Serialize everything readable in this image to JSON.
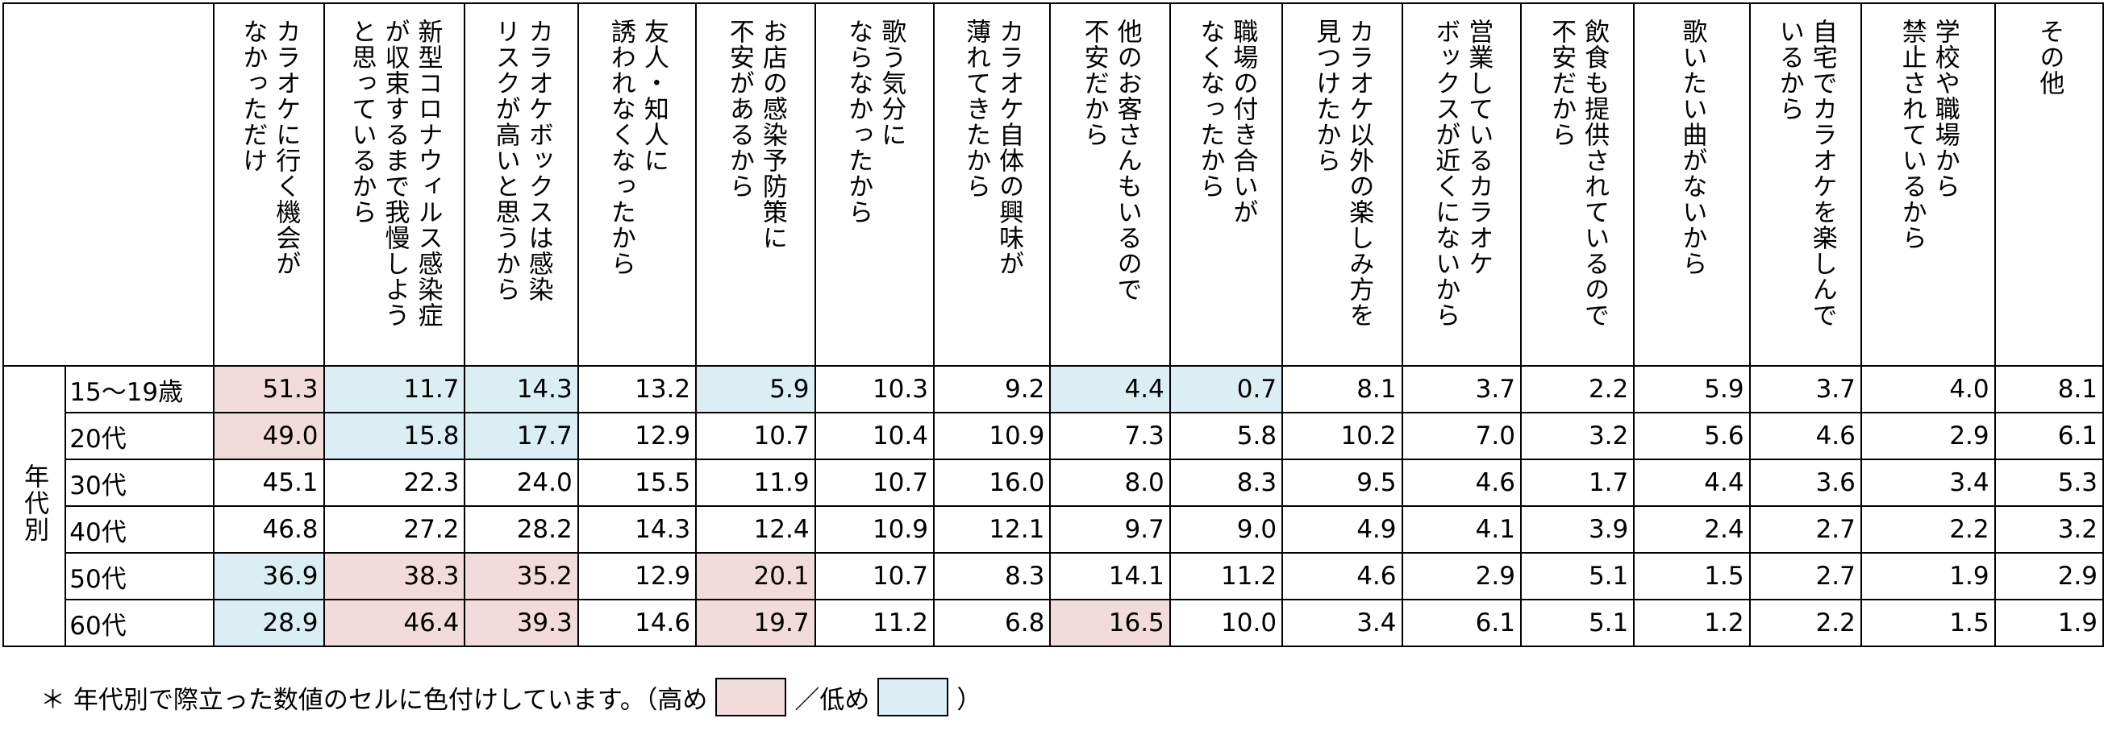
{
  "chart_data": {
    "type": "table",
    "columns": [
      "カラオケに行く機会が\nなかっただけ",
      "新型コロナウィルス感染症\nが収束するまで我慢しよう\nと思っているから",
      "カラオケボックスは感染\nリスクが高いと思うから",
      "友人・知人に\n誘われなくなったから",
      "お店の感染予防策に\n不安があるから",
      "歌う気分に\nならなかったから",
      "カラオケ自体の興味が\n薄れてきたから",
      "他のお客さんもいるので\n不安だから",
      "職場の付き合いが\nなくなったから",
      "カラオケ以外の楽しみ方を\n見つけたから",
      "営業しているカラオケ\nボックスが近くにないから",
      "飲食も提供されているので\n不安だから",
      "歌いたい曲がないから",
      "自宅でカラオケを楽しんで\nいるから",
      "学校や職場から\n禁止されているから",
      "その他"
    ],
    "row_group_label": "年代別",
    "rows": [
      {
        "label": "15～19歳",
        "values": [
          "51.3",
          "11.7",
          "14.3",
          "13.2",
          "5.9",
          "10.3",
          "9.2",
          "4.4",
          "0.7",
          "8.1",
          "3.7",
          "2.2",
          "5.9",
          "3.7",
          "4.0",
          "8.1"
        ],
        "highlight": {
          "0": "hi",
          "1": "lo",
          "2": "lo",
          "4": "lo",
          "7": "lo",
          "8": "lo"
        }
      },
      {
        "label": "20代",
        "values": [
          "49.0",
          "15.8",
          "17.7",
          "12.9",
          "10.7",
          "10.4",
          "10.9",
          "7.3",
          "5.8",
          "10.2",
          "7.0",
          "3.2",
          "5.6",
          "4.6",
          "2.9",
          "6.1"
        ],
        "highlight": {
          "0": "hi",
          "1": "lo",
          "2": "lo"
        }
      },
      {
        "label": "30代",
        "values": [
          "45.1",
          "22.3",
          "24.0",
          "15.5",
          "11.9",
          "10.7",
          "16.0",
          "8.0",
          "8.3",
          "9.5",
          "4.6",
          "1.7",
          "4.4",
          "3.6",
          "3.4",
          "5.3"
        ],
        "highlight": {}
      },
      {
        "label": "40代",
        "values": [
          "46.8",
          "27.2",
          "28.2",
          "14.3",
          "12.4",
          "10.9",
          "12.1",
          "9.7",
          "9.0",
          "4.9",
          "4.1",
          "3.9",
          "2.4",
          "2.7",
          "2.2",
          "3.2"
        ],
        "highlight": {}
      },
      {
        "label": "50代",
        "values": [
          "36.9",
          "38.3",
          "35.2",
          "12.9",
          "20.1",
          "10.7",
          "8.3",
          "14.1",
          "11.2",
          "4.6",
          "2.9",
          "5.1",
          "1.5",
          "2.7",
          "1.9",
          "2.9"
        ],
        "highlight": {
          "0": "lo",
          "1": "hi",
          "2": "hi",
          "4": "hi"
        }
      },
      {
        "label": "60代",
        "values": [
          "28.9",
          "46.4",
          "39.3",
          "14.6",
          "19.7",
          "11.2",
          "6.8",
          "16.5",
          "10.0",
          "3.4",
          "6.1",
          "5.1",
          "1.2",
          "2.2",
          "1.5",
          "1.9"
        ],
        "highlight": {
          "0": "lo",
          "1": "hi",
          "2": "hi",
          "4": "hi",
          "7": "hi"
        }
      }
    ],
    "colors": {
      "hi": "#f2dcdb",
      "lo": "#dbeef4"
    }
  },
  "note": {
    "prefix": "＊ 年代別で際立った数値のセルに色付けしています。（高め",
    "middle": "／低め",
    "suffix": "）"
  }
}
